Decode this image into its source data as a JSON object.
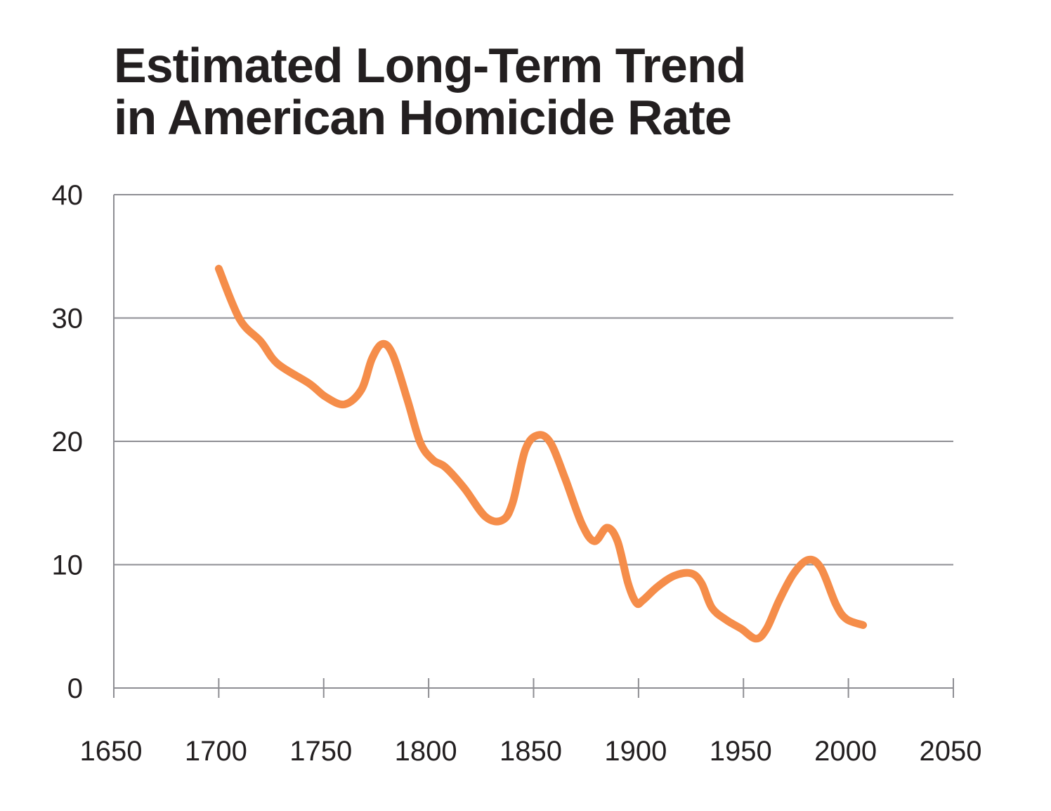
{
  "chart_data": {
    "type": "line",
    "title_lines": [
      "Estimated Long-Term Trend",
      "in American Homicide Rate"
    ],
    "xlabel": "",
    "ylabel": "",
    "xlim": [
      1650,
      2050
    ],
    "ylim": [
      0,
      40
    ],
    "xticks": [
      1650,
      1700,
      1750,
      1800,
      1850,
      1900,
      1950,
      2000,
      2050
    ],
    "yticks": [
      0,
      10,
      20,
      30,
      40
    ],
    "grid": "horizontal",
    "legend": "none",
    "series": [
      {
        "color": "#F58D4A",
        "x": [
          1700,
          1710,
          1720,
          1728,
          1743,
          1751,
          1760,
          1768,
          1773,
          1778,
          1783,
          1790,
          1796,
          1802,
          1808,
          1817,
          1827,
          1835,
          1840,
          1846,
          1852,
          1858,
          1865,
          1873,
          1879,
          1885,
          1890,
          1895,
          1899,
          1902,
          1909,
          1917,
          1925,
          1930,
          1935,
          1942,
          1949,
          1956,
          1961,
          1967,
          1974,
          1981,
          1987,
          1994,
          1999,
          2007
        ],
        "y": [
          34.0,
          29.9,
          28.1,
          26.3,
          24.7,
          23.6,
          23.0,
          24.2,
          26.7,
          27.9,
          27.0,
          23.3,
          19.9,
          18.5,
          17.9,
          16.2,
          13.9,
          13.6,
          15.0,
          19.3,
          20.5,
          19.9,
          17.0,
          13.3,
          11.9,
          13.0,
          11.9,
          8.5,
          6.9,
          7.1,
          8.2,
          9.1,
          9.3,
          8.5,
          6.5,
          5.5,
          4.8,
          4.0,
          4.8,
          7.1,
          9.3,
          10.4,
          9.7,
          6.8,
          5.6,
          5.1
        ]
      }
    ]
  }
}
